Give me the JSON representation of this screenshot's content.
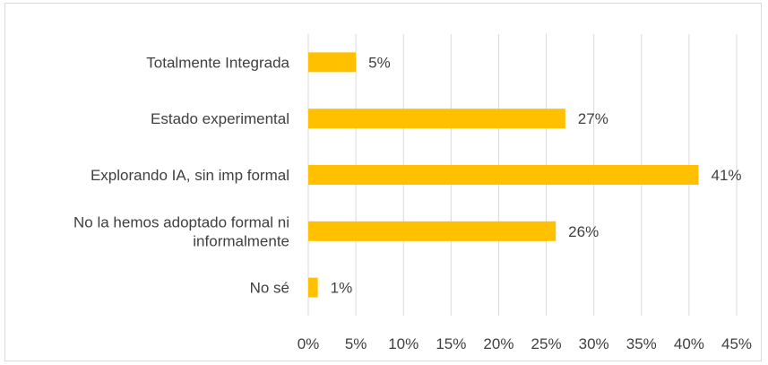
{
  "chart_data": {
    "type": "bar",
    "orientation": "horizontal",
    "categories": [
      [
        "Totalmente Integrada"
      ],
      [
        "Estado experimental"
      ],
      [
        "Explorando IA, sin imp formal"
      ],
      [
        "No la hemos adoptado formal ni",
        "informalmente"
      ],
      [
        "No sé"
      ]
    ],
    "values": [
      5,
      27,
      41,
      26,
      1
    ],
    "value_labels": [
      "5%",
      "27%",
      "41%",
      "26%",
      "1%"
    ],
    "ticks": [
      "0%",
      "5%",
      "10%",
      "15%",
      "20%",
      "25%",
      "30%",
      "35%",
      "40%",
      "45%"
    ],
    "xlim": [
      0,
      45
    ],
    "grid": true,
    "bar_color": "#FFC000",
    "grid_color": "#D9D9D9",
    "text_color": "#404040"
  }
}
